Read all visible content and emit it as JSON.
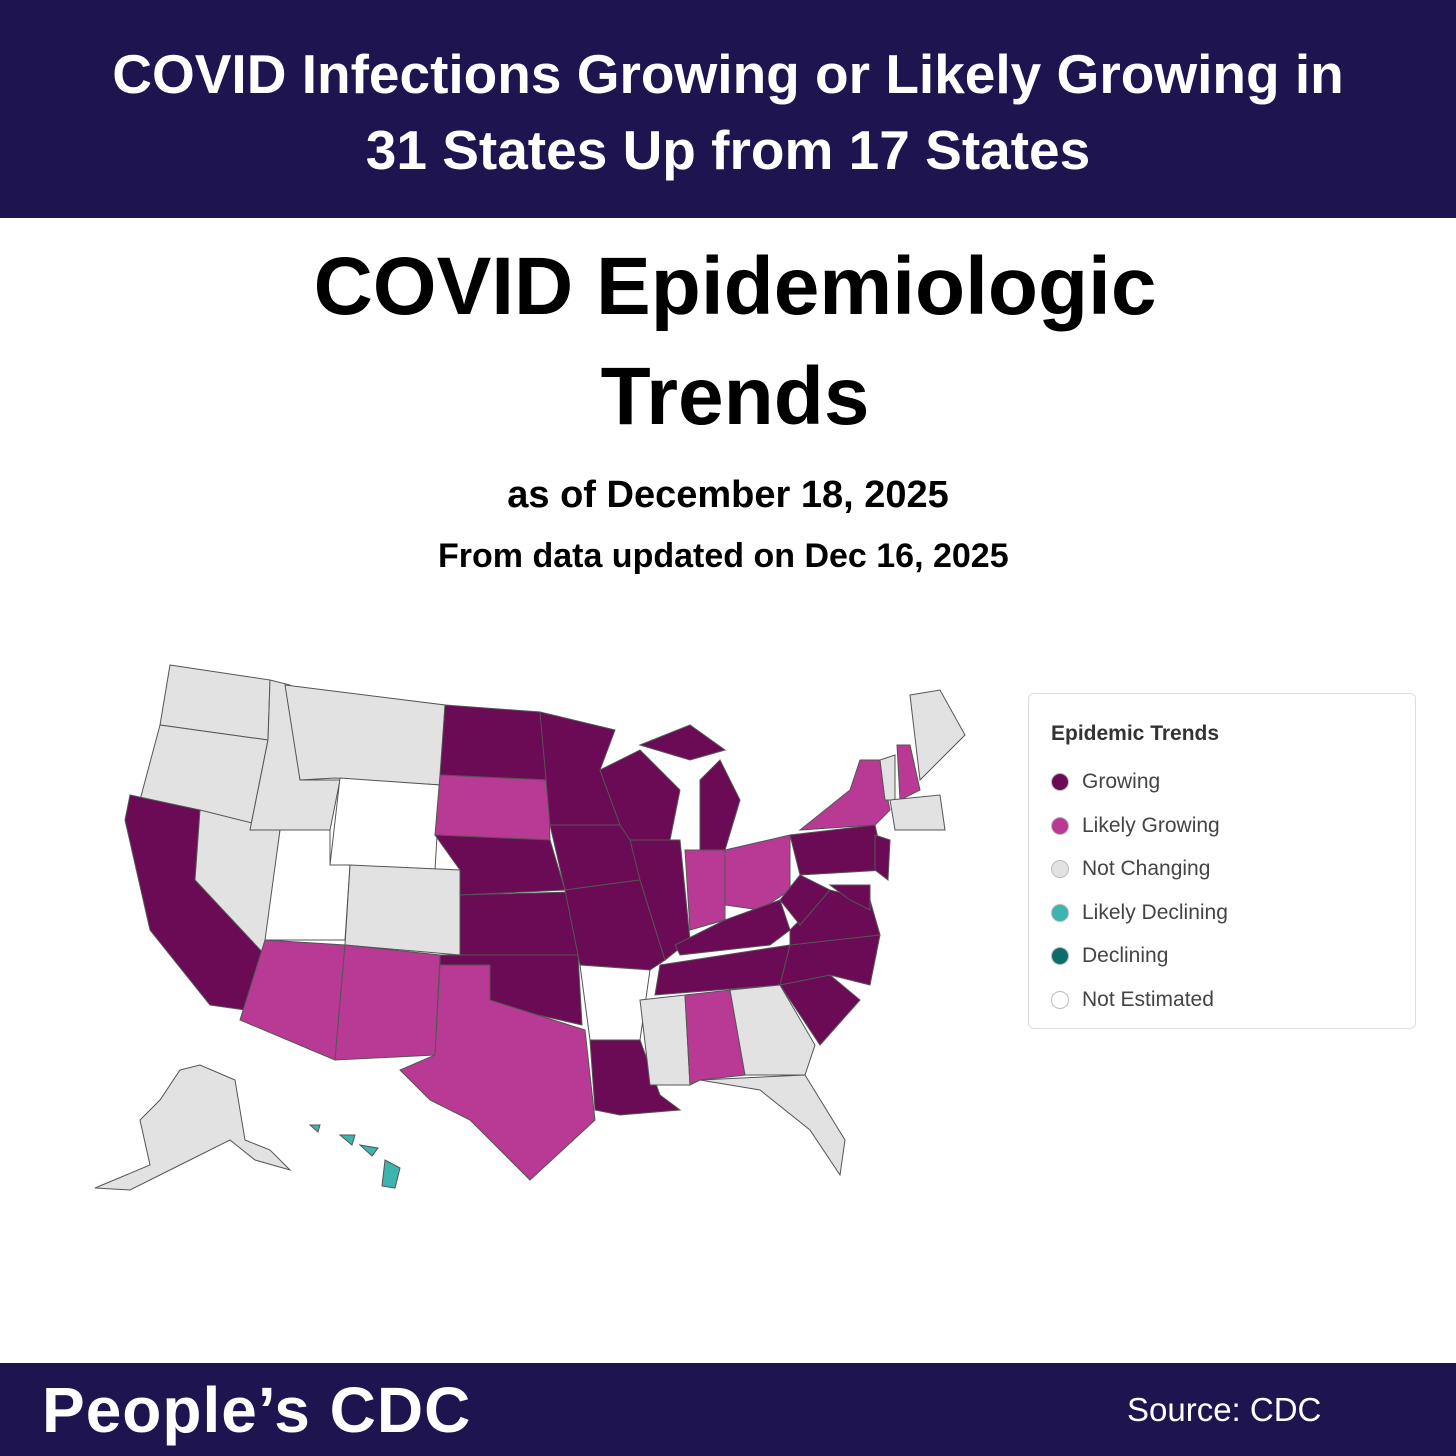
{
  "header": {
    "title_lines": [
      "COVID Infections Growing or Likely Growing in",
      "31 States Up from 17 States"
    ]
  },
  "map": {
    "title_lines": [
      "COVID Epidemiologic",
      "Trends"
    ],
    "subtitle": "as of December 18, 2025",
    "updated": "From data updated on Dec 16, 2025",
    "legend": {
      "title": "Epidemic Trends",
      "items": [
        {
          "label": "Growing",
          "color": "#6b0a55"
        },
        {
          "label": "Likely Growing",
          "color": "#b83a94"
        },
        {
          "label": "Not Changing",
          "color": "#e2e2e2"
        },
        {
          "label": "Likely Declining",
          "color": "#3bb5ad"
        },
        {
          "label": "Declining",
          "color": "#0e6b6b"
        },
        {
          "label": "Not Estimated",
          "color": "#ffffff"
        }
      ]
    }
  },
  "footer": {
    "brand": "People’s CDC",
    "source": "Source: CDC"
  }
}
